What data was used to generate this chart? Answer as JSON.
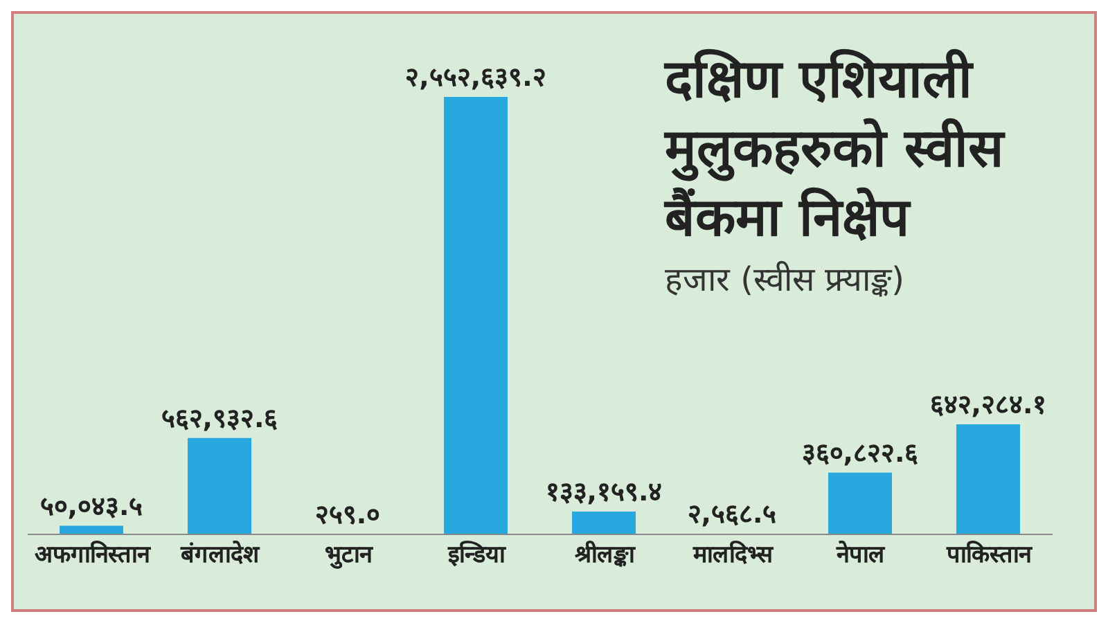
{
  "chart_data": {
    "type": "bar",
    "title": "दक्षिण एशियाली मुलुकहरुको स्वीस बैंकमा निक्षेप",
    "subtitle": "हजार (स्वीस फ्र्याङ्क)",
    "categories": [
      "अफगानिस्तान",
      "बंगलादेश",
      "भुटान",
      "इन्डिया",
      "श्रीलङ्का",
      "मालदिभ्स",
      "नेपाल",
      "पाकिस्तान"
    ],
    "values": [
      50043.5,
      562932.6,
      259.0,
      2552639.2,
      133159.4,
      2568.5,
      360822.6,
      642284.1
    ],
    "value_labels": [
      "५०,०४३.५",
      "५६२,९३२.६",
      "२५९.०",
      "२,५५२,६३९.२",
      "१३३,१५९.४",
      "२,५६८.५",
      "३६०,८२२.६",
      "६४२,२८४.१"
    ],
    "color": "#29a8e0",
    "grid": false,
    "legend": false
  }
}
